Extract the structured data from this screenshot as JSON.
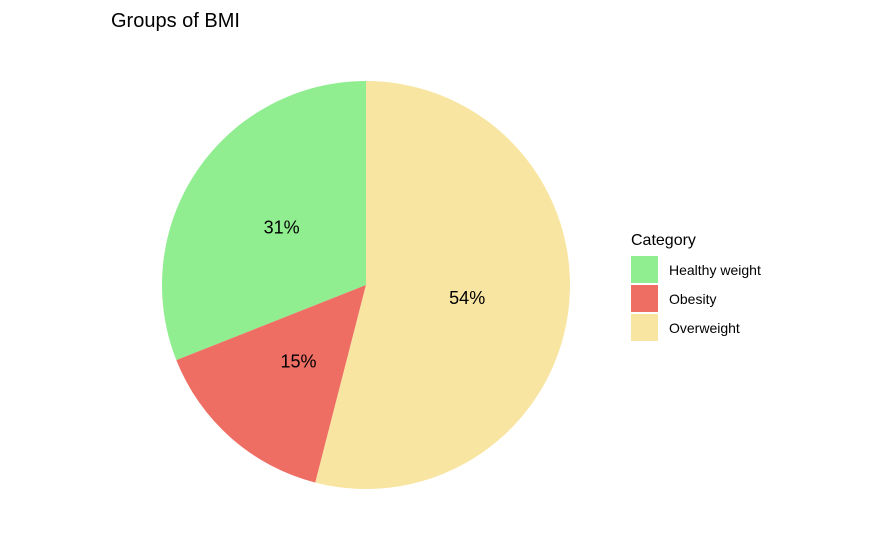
{
  "chart_data": {
    "type": "pie",
    "title": "Groups of BMI",
    "legend_title": "Category",
    "legend_position": "right",
    "slices": [
      {
        "name": "Healthy weight",
        "value": 31,
        "label": "31%",
        "color": "#90EE90"
      },
      {
        "name": "Obesity",
        "value": 15,
        "label": "15%",
        "color": "#EE6E64"
      },
      {
        "name": "Overweight",
        "value": 54,
        "label": "54%",
        "color": "#F8E5A1"
      }
    ]
  }
}
